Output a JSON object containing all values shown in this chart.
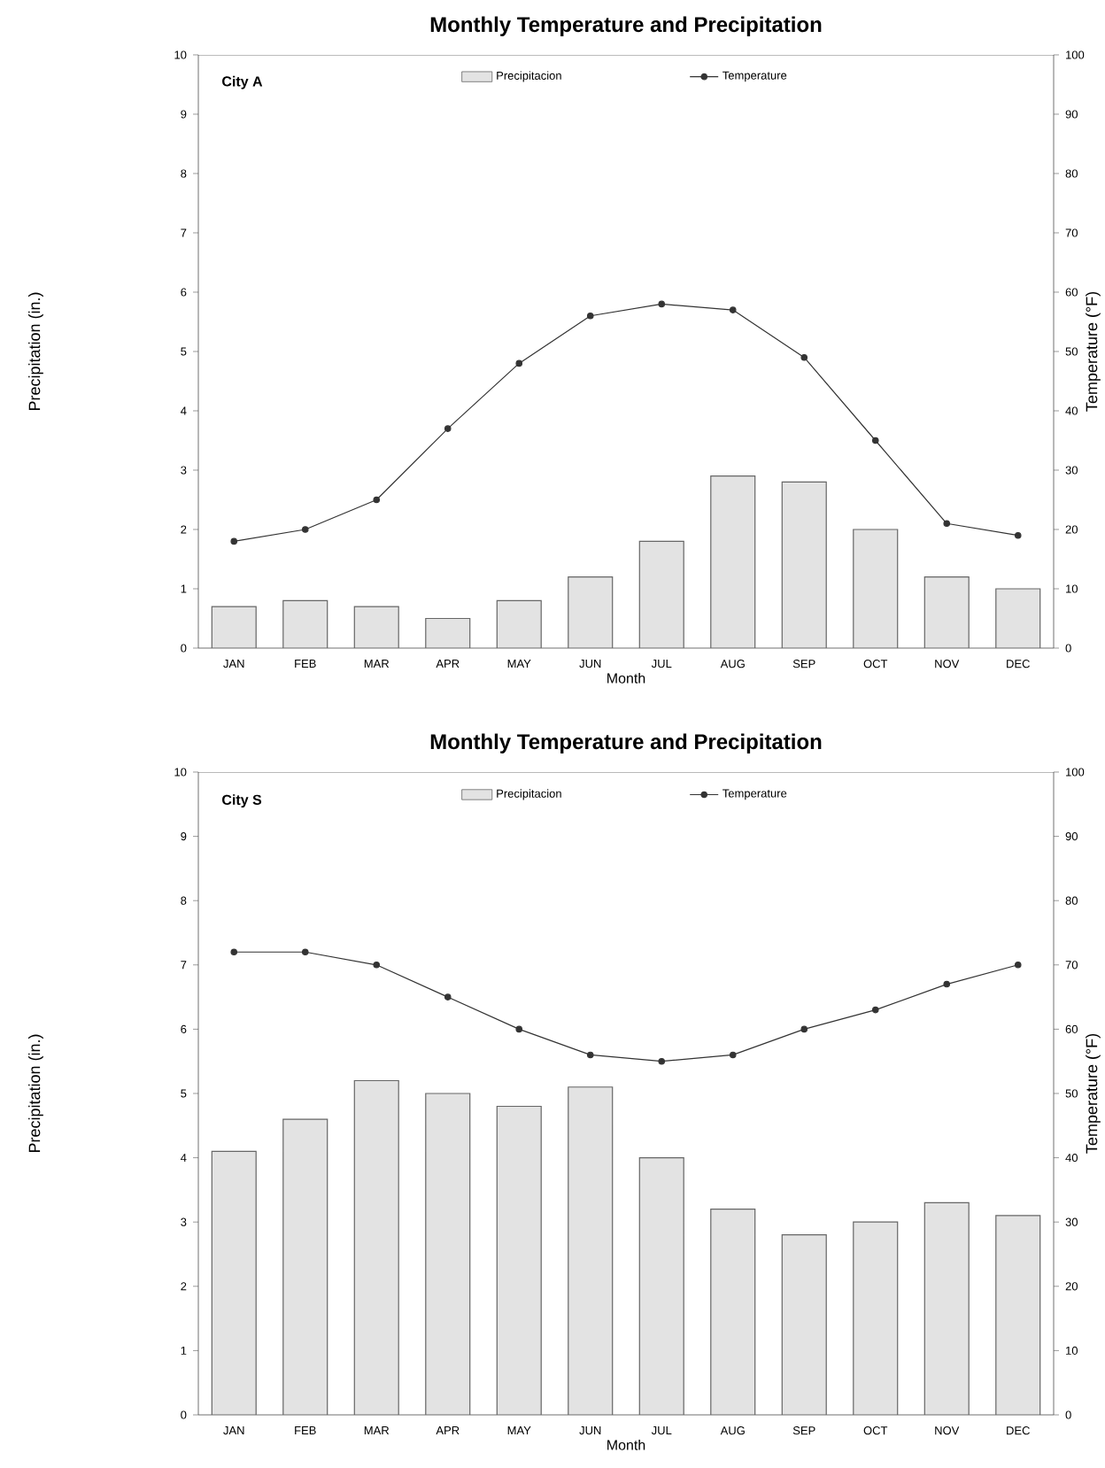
{
  "chart_data": [
    {
      "type": "bar",
      "title": "Monthly Temperature and Precipitation",
      "annotations": [
        "City A"
      ],
      "xlabel": "Month",
      "ylabel": "Precipitation (in.)",
      "y2label": "Temperature (°F)",
      "categories": [
        "JAN",
        "FEB",
        "MAR",
        "APR",
        "MAY",
        "JUN",
        "JUL",
        "AUG",
        "SEP",
        "OCT",
        "NOV",
        "DEC"
      ],
      "series": [
        {
          "name": "Precipitacion",
          "color": "#e3e3e3",
          "values": [
            0.7,
            0.8,
            0.7,
            0.5,
            0.8,
            1.2,
            1.8,
            2.9,
            2.8,
            2.0,
            1.2,
            1.0
          ]
        },
        {
          "name": "Temperature",
          "type": "line",
          "axis": "y2",
          "color": "#333333",
          "values": [
            18,
            20,
            25,
            37,
            48,
            56,
            58,
            57,
            49,
            35,
            21,
            19
          ]
        }
      ],
      "ylim": [
        0,
        10
      ],
      "yticks": [
        0,
        1,
        2,
        3,
        4,
        5,
        6,
        7,
        8,
        9,
        10
      ],
      "y2lim": [
        0,
        100
      ],
      "y2ticks": [
        0,
        10,
        20,
        30,
        40,
        50,
        60,
        70,
        80,
        90,
        100
      ],
      "legend": "top",
      "marker": "circle",
      "grid": false
    },
    {
      "type": "bar",
      "title": "Monthly Temperature and Precipitation",
      "annotations": [
        "City S"
      ],
      "xlabel": "Month",
      "ylabel": "Precipitation (in.)",
      "y2label": "Temperature (°F)",
      "categories": [
        "JAN",
        "FEB",
        "MAR",
        "APR",
        "MAY",
        "JUN",
        "JUL",
        "AUG",
        "SEP",
        "OCT",
        "NOV",
        "DEC"
      ],
      "series": [
        {
          "name": "Precipitacion",
          "color": "#e3e3e3",
          "values": [
            4.1,
            4.6,
            5.2,
            5.0,
            4.8,
            5.1,
            4.0,
            3.2,
            2.8,
            3.0,
            3.3,
            3.1
          ]
        },
        {
          "name": "Temperature",
          "type": "line",
          "axis": "y2",
          "color": "#333333",
          "values": [
            72,
            72,
            70,
            65,
            60,
            56,
            55,
            56,
            60,
            63,
            67,
            70
          ]
        }
      ],
      "ylim": [
        0,
        10
      ],
      "yticks": [
        0,
        1,
        2,
        3,
        4,
        5,
        6,
        7,
        8,
        9,
        10
      ],
      "y2lim": [
        0,
        100
      ],
      "y2ticks": [
        0,
        10,
        20,
        30,
        40,
        50,
        60,
        70,
        80,
        90,
        100
      ],
      "legend": "top",
      "marker": "circle",
      "grid": false
    }
  ]
}
